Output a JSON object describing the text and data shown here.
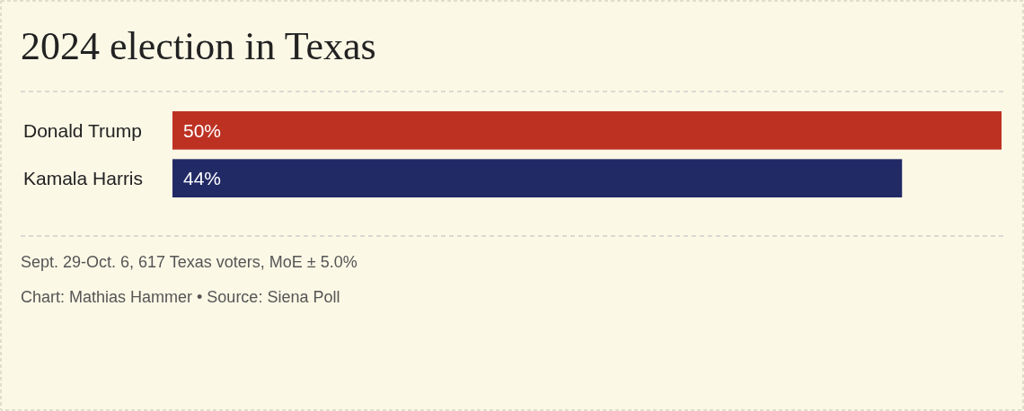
{
  "chart_data": {
    "type": "bar",
    "orientation": "horizontal",
    "title": "2024 election in Texas",
    "categories": [
      "Donald Trump",
      "Kamala Harris"
    ],
    "values": [
      50,
      44
    ],
    "colors": [
      "#bd3122",
      "#222a66"
    ],
    "xlim": [
      0,
      50
    ],
    "data_labels": true,
    "value_labels": [
      "50%",
      "44%"
    ],
    "annotations": [
      "Sept. 29-Oct. 6, 617 Texas voters, MoE ± 5.0%",
      "Chart: Mathias Hammer • Source: Siena Poll"
    ]
  }
}
